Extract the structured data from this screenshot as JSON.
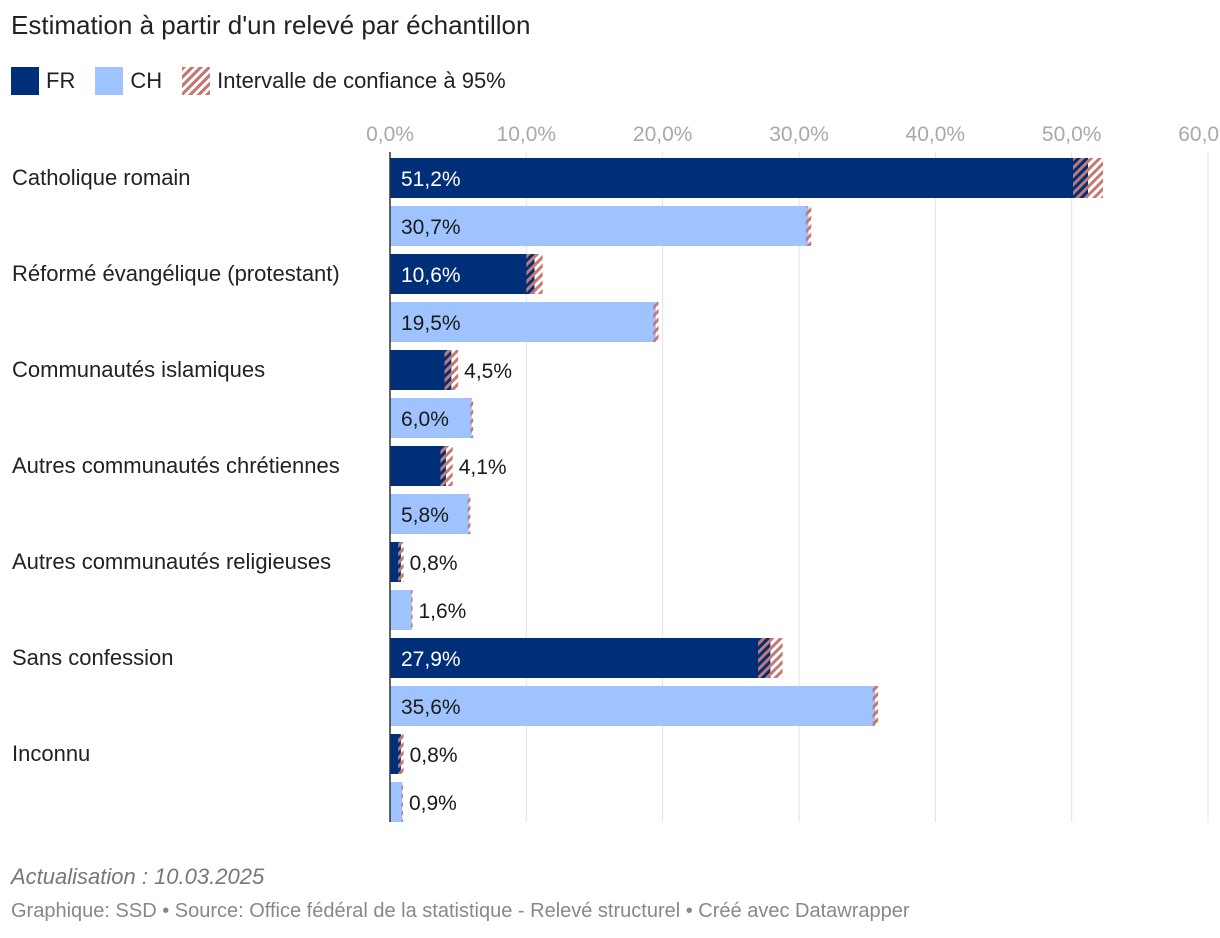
{
  "chart_data": {
    "type": "bar",
    "orientation": "horizontal",
    "title": "Estimation à partir d'un relevé par échantillon",
    "legend": [
      {
        "key": "fr",
        "label": "FR",
        "color": "#002f7a"
      },
      {
        "key": "ch",
        "label": "CH",
        "color": "#9ec3ff"
      },
      {
        "key": "ci",
        "label": "Intervalle de confiance à 95%",
        "color": "#c47a73"
      }
    ],
    "xlim": [
      0,
      60
    ],
    "x_ticks": [
      0,
      10,
      20,
      30,
      40,
      50,
      60
    ],
    "x_tick_labels": [
      "0,0%",
      "10,0%",
      "20,0%",
      "30,0%",
      "40,0%",
      "50,0%",
      "60,0%"
    ],
    "grid": true,
    "categories": [
      "Catholique romain",
      "Réformé évangélique (protestant)",
      "Communautés islamiques",
      "Autres communautés chrétiennes",
      "Autres communautés religieuses",
      "Sans confession",
      "Inconnu"
    ],
    "series": [
      {
        "name": "FR",
        "values": [
          51.2,
          10.6,
          4.5,
          4.1,
          0.8,
          27.9,
          0.8
        ],
        "labels": [
          "51,2%",
          "10,6%",
          "4,5%",
          "4,1%",
          "0,8%",
          "27,9%",
          "0,8%"
        ],
        "ci_lower": [
          50.1,
          10.0,
          4.0,
          3.7,
          0.6,
          27.0,
          0.6
        ],
        "ci_upper": [
          52.3,
          11.2,
          5.0,
          4.6,
          1.0,
          28.8,
          1.0
        ]
      },
      {
        "name": "CH",
        "values": [
          30.7,
          19.5,
          6.0,
          5.8,
          1.6,
          35.6,
          0.9
        ],
        "labels": [
          "30,7%",
          "19,5%",
          "6,0%",
          "5,8%",
          "1,6%",
          "35,6%",
          "0,9%"
        ],
        "ci_lower": [
          30.5,
          19.3,
          5.9,
          5.7,
          1.55,
          35.4,
          0.85
        ],
        "ci_upper": [
          30.9,
          19.7,
          6.1,
          5.9,
          1.65,
          35.8,
          0.95
        ]
      }
    ]
  },
  "footer": {
    "note": "Actualisation : 10.03.2025",
    "credit": "Graphique: SSD • Source: Office fédéral de la statistique - Relevé structurel  • Créé avec Datawrapper"
  }
}
